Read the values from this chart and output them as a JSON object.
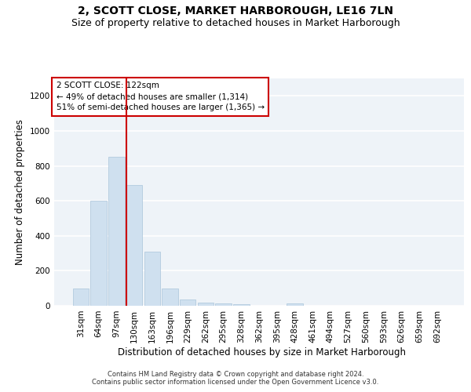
{
  "title": "2, SCOTT CLOSE, MARKET HARBOROUGH, LE16 7LN",
  "subtitle": "Size of property relative to detached houses in Market Harborough",
  "xlabel": "Distribution of detached houses by size in Market Harborough",
  "ylabel": "Number of detached properties",
  "footer_line1": "Contains HM Land Registry data © Crown copyright and database right 2024.",
  "footer_line2": "Contains public sector information licensed under the Open Government Licence v3.0.",
  "categories": [
    "31sqm",
    "64sqm",
    "97sqm",
    "130sqm",
    "163sqm",
    "196sqm",
    "229sqm",
    "262sqm",
    "295sqm",
    "328sqm",
    "362sqm",
    "395sqm",
    "428sqm",
    "461sqm",
    "494sqm",
    "527sqm",
    "560sqm",
    "593sqm",
    "626sqm",
    "659sqm",
    "692sqm"
  ],
  "values": [
    100,
    600,
    850,
    690,
    310,
    100,
    35,
    20,
    15,
    10,
    0,
    0,
    15,
    0,
    0,
    0,
    0,
    0,
    0,
    0,
    0
  ],
  "bar_color": "#cfe0ef",
  "bar_edge_color": "#aac4da",
  "ylim": [
    0,
    1300
  ],
  "yticks": [
    0,
    200,
    400,
    600,
    800,
    1000,
    1200
  ],
  "marker_label": "2 SCOTT CLOSE: 122sqm",
  "annotation_line1": "← 49% of detached houses are smaller (1,314)",
  "annotation_line2": "51% of semi-detached houses are larger (1,365) →",
  "annotation_color": "#cc0000",
  "background_color": "#eef3f8",
  "grid_color": "#ffffff",
  "title_fontsize": 10,
  "subtitle_fontsize": 9,
  "axis_label_fontsize": 8.5,
  "tick_fontsize": 7.5,
  "footer_fontsize": 6
}
